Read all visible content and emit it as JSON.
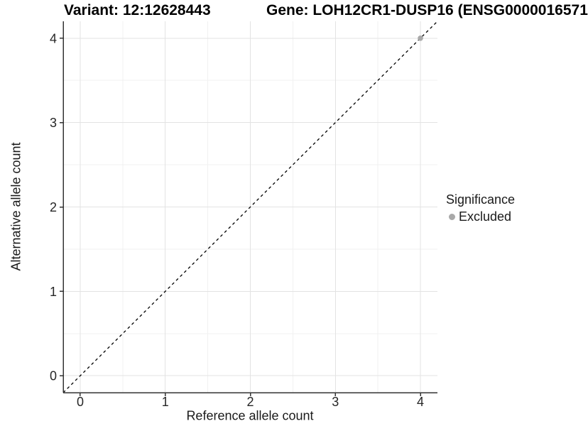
{
  "page": {
    "title_variant": "Variant: 12:12628443",
    "title_gene": "Gene: LOH12CR1-DUSP16 (ENSG0000016571"
  },
  "chart_data": {
    "type": "scatter",
    "title": "Variant: 12:12628443   Gene: LOH12CR1-DUSP16 (ENSG0000016571",
    "xlabel": "Reference allele count",
    "ylabel": "Alternative allele count",
    "xlim": [
      -0.2,
      4.2
    ],
    "ylim": [
      -0.2,
      4.2
    ],
    "xticks": [
      0,
      1,
      2,
      3,
      4
    ],
    "yticks": [
      0,
      1,
      2,
      3,
      4
    ],
    "xticks_minor": [
      0.5,
      1.5,
      2.5,
      3.5
    ],
    "yticks_minor": [
      0.5,
      1.5,
      2.5,
      3.5
    ],
    "grid": true,
    "reference_line": {
      "kind": "identity y=x",
      "style": "dashed",
      "color": "#000000"
    },
    "series": [
      {
        "name": "Excluded",
        "color": "#a9a9a9",
        "points": [
          {
            "x": 4,
            "y": 4
          }
        ]
      }
    ],
    "legend": {
      "position": "right",
      "title": "Significance",
      "items": [
        {
          "label": "Excluded",
          "color": "#a9a9a9"
        }
      ]
    },
    "colors": {
      "axis_line": "#333333",
      "axis_text": "#262626",
      "grid_major": "#e3e3e3",
      "grid_minor": "#f1f1f1",
      "background": "#ffffff"
    }
  }
}
